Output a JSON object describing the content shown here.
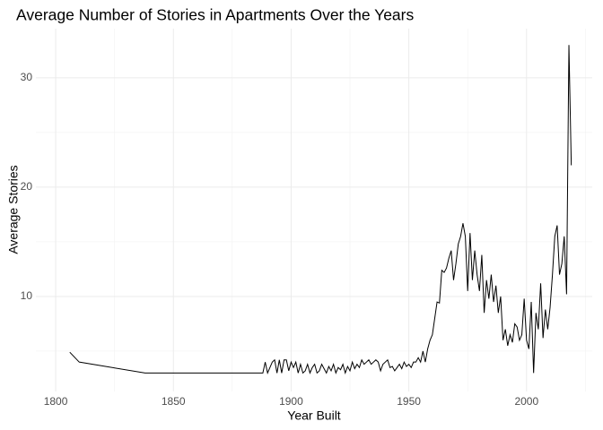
{
  "chart_data": {
    "type": "line",
    "title": "Average Number of Stories in Apartments Over the Years",
    "x_label": "Year Built",
    "y_label": "Average Stories",
    "color": "#000000",
    "grid": true,
    "xlim": [
      1791.6,
      2027.9
    ],
    "ylim": [
      1.31,
      34.5
    ],
    "xticks": [
      1800,
      1850,
      1900,
      1950,
      2000
    ],
    "yticks": [
      10,
      20,
      30
    ],
    "x": [
      1806,
      1810,
      1838,
      1888,
      1889,
      1890,
      1891,
      1892,
      1893,
      1894,
      1895,
      1896,
      1897,
      1898,
      1899,
      1900,
      1901,
      1902,
      1903,
      1904,
      1905,
      1906,
      1907,
      1908,
      1909,
      1910,
      1911,
      1912,
      1913,
      1914,
      1915,
      1916,
      1917,
      1918,
      1919,
      1920,
      1921,
      1922,
      1923,
      1924,
      1925,
      1926,
      1927,
      1928,
      1929,
      1930,
      1931,
      1932,
      1933,
      1934,
      1935,
      1936,
      1937,
      1938,
      1939,
      1940,
      1941,
      1942,
      1943,
      1944,
      1945,
      1946,
      1947,
      1948,
      1949,
      1950,
      1951,
      1952,
      1953,
      1954,
      1955,
      1956,
      1957,
      1958,
      1959,
      1960,
      1961,
      1962,
      1963,
      1964,
      1965,
      1966,
      1967,
      1968,
      1969,
      1970,
      1971,
      1972,
      1973,
      1974,
      1975,
      1976,
      1977,
      1978,
      1979,
      1980,
      1981,
      1982,
      1983,
      1984,
      1985,
      1986,
      1987,
      1988,
      1989,
      1990,
      1991,
      1992,
      1993,
      1994,
      1995,
      1996,
      1997,
      1998,
      1999,
      2000,
      2001,
      2002,
      2003,
      2004,
      2005,
      2006,
      2007,
      2008,
      2009,
      2010,
      2011,
      2012,
      2013,
      2014,
      2015,
      2016,
      2017,
      2018,
      2019
    ],
    "values": [
      4.9,
      4.0,
      3.0,
      3.0,
      4.0,
      3.0,
      3.5,
      4.0,
      4.2,
      3.0,
      4.2,
      3.0,
      4.2,
      4.2,
      3.2,
      4.0,
      3.5,
      4.0,
      3.0,
      3.8,
      3.0,
      3.2,
      3.8,
      3.0,
      3.5,
      3.8,
      3.0,
      3.2,
      3.8,
      3.4,
      3.0,
      3.6,
      3.2,
      3.8,
      3.0,
      3.5,
      3.3,
      3.8,
      3.0,
      3.6,
      3.2,
      4.0,
      3.4,
      3.8,
      3.5,
      4.2,
      3.8,
      4.0,
      4.2,
      3.8,
      4.0,
      4.2,
      4.0,
      3.2,
      3.8,
      4.0,
      4.2,
      3.5,
      3.6,
      3.2,
      3.5,
      3.8,
      3.4,
      4.0,
      3.6,
      3.8,
      3.5,
      4.0,
      4.0,
      4.4,
      4.0,
      5.0,
      4.0,
      5.2,
      6.0,
      6.5,
      8.0,
      9.5,
      9.4,
      12.4,
      12.2,
      12.6,
      13.5,
      14.2,
      11.5,
      13.0,
      14.8,
      15.5,
      16.7,
      15.5,
      10.5,
      15.8,
      11.5,
      14.2,
      12.0,
      10.5,
      13.8,
      8.5,
      11.5,
      9.8,
      12.0,
      9.5,
      11.0,
      8.5,
      10.0,
      6.0,
      7.0,
      5.5,
      6.5,
      5.8,
      7.5,
      7.2,
      6.0,
      6.5,
      9.8,
      6.0,
      5.2,
      9.5,
      3.0,
      8.5,
      7.0,
      11.2,
      6.2,
      8.8,
      7.0,
      9.0,
      12.0,
      15.5,
      16.5,
      12.0,
      13.0,
      15.5,
      10.2,
      33.0,
      22.0
    ]
  }
}
